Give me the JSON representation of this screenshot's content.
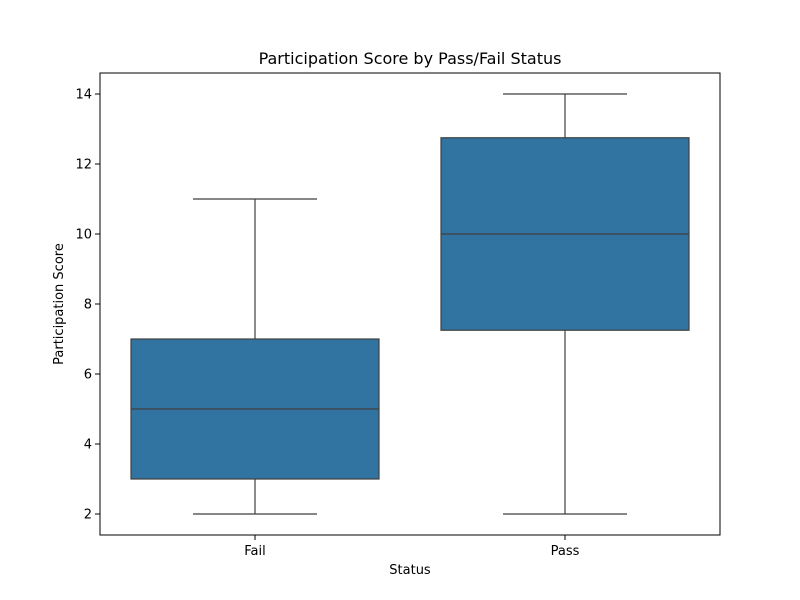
{
  "chart_data": {
    "type": "boxplot",
    "title": "Participation Score by Pass/Fail Status",
    "xlabel": "Status",
    "ylabel": "Participation Score",
    "categories": [
      "Fail",
      "Pass"
    ],
    "boxes": [
      {
        "category": "Fail",
        "whisker_low": 2,
        "q1": 3,
        "median": 5,
        "q3": 7,
        "whisker_high": 11
      },
      {
        "category": "Pass",
        "whisker_low": 2,
        "q1": 7.25,
        "median": 10,
        "q3": 12.75,
        "whisker_high": 14
      }
    ],
    "ylim": [
      1.4,
      14.6
    ],
    "yticks": [
      2,
      4,
      6,
      8,
      10,
      12,
      14
    ],
    "grid": false,
    "colors": {
      "box_fill": "#3274a1",
      "box_line": "#3f3f3f",
      "axis": "#000000"
    }
  }
}
